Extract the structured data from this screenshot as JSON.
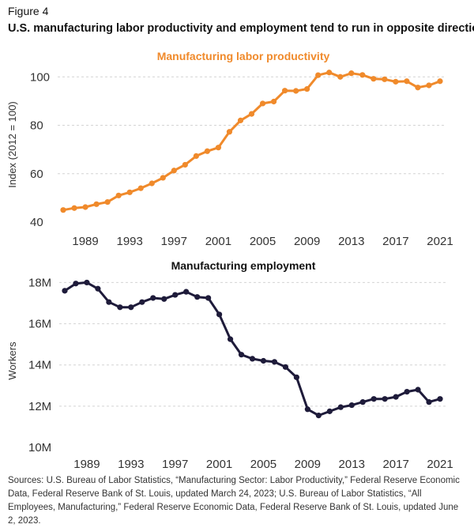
{
  "figure_label": "Figure 4",
  "headline": "U.S. manufacturing labor productivity and employment tend to run in opposite directions",
  "sources": "Sources: U.S. Bureau of Labor Statistics, “Manufacturing Sector: Labor Productivity,” Federal Reserve Economic Data, Federal Reserve Bank of St. Louis, updated March 24, 2023; U.S. Bureau of Labor Statistics, “All Employees, Manufacturing,” Federal Reserve Economic Data, Federal Reserve Bank of St. Louis, updated June 2, 2023.",
  "chart_data": [
    {
      "type": "line",
      "title": "Manufacturing labor productivity",
      "title_color": "#f08a2b",
      "line_color": "#f08a2b",
      "xlabel": "",
      "ylabel": "Index (2012 = 100)",
      "x": [
        1987,
        1988,
        1989,
        1990,
        1991,
        1992,
        1993,
        1994,
        1995,
        1996,
        1997,
        1998,
        1999,
        2000,
        2001,
        2002,
        2003,
        2004,
        2005,
        2006,
        2007,
        2008,
        2009,
        2010,
        2011,
        2012,
        2013,
        2014,
        2015,
        2016,
        2017,
        2018,
        2019,
        2020,
        2021
      ],
      "values": [
        45,
        45.8,
        46.2,
        47.4,
        48.3,
        51,
        52.3,
        54,
        56,
        58.3,
        61.3,
        63.7,
        67.3,
        69.3,
        70.8,
        77.3,
        82,
        84.7,
        89,
        89.8,
        94.3,
        94.2,
        95,
        100.7,
        101.8,
        100,
        101.5,
        100.8,
        99.2,
        99,
        98,
        98.2,
        95.6,
        96.5,
        98.2
      ],
      "xticks": [
        1989,
        1993,
        1997,
        2001,
        2005,
        2009,
        2013,
        2017,
        2021
      ],
      "yticks": [
        40,
        60,
        80,
        100
      ],
      "ytick_labels": [
        "40",
        "60",
        "80",
        "100"
      ],
      "ylim": [
        40,
        104
      ],
      "xlim": [
        1986.5,
        2021.5
      ],
      "grid": true
    },
    {
      "type": "line",
      "title": "Manufacturing employment",
      "title_color": "#111111",
      "line_color": "#1e1b3a",
      "xlabel": "",
      "ylabel": "Workers",
      "x": [
        1987,
        1988,
        1989,
        1990,
        1991,
        1992,
        1993,
        1994,
        1995,
        1996,
        1997,
        1998,
        1999,
        2000,
        2001,
        2002,
        2003,
        2004,
        2005,
        2006,
        2007,
        2008,
        2009,
        2010,
        2011,
        2012,
        2013,
        2014,
        2015,
        2016,
        2017,
        2018,
        2019,
        2020,
        2021
      ],
      "values": [
        17600000,
        17950000,
        18000000,
        17700000,
        17050000,
        16800000,
        16800000,
        17050000,
        17250000,
        17200000,
        17400000,
        17550000,
        17300000,
        17250000,
        16450000,
        15250000,
        14500000,
        14300000,
        14200000,
        14150000,
        13900000,
        13400000,
        11850000,
        11550000,
        11750000,
        11950000,
        12050000,
        12200000,
        12350000,
        12350000,
        12450000,
        12700000,
        12800000,
        12200000,
        12350000
      ],
      "xticks": [
        1989,
        1993,
        1997,
        2001,
        2005,
        2009,
        2013,
        2017,
        2021
      ],
      "yticks": [
        10000000,
        12000000,
        14000000,
        16000000,
        18000000
      ],
      "ytick_labels": [
        "10M",
        "12M",
        "14M",
        "16M",
        "18M"
      ],
      "ylim": [
        10000000,
        18400000
      ],
      "xlim": [
        1986.5,
        2021.5
      ],
      "grid": true
    }
  ]
}
